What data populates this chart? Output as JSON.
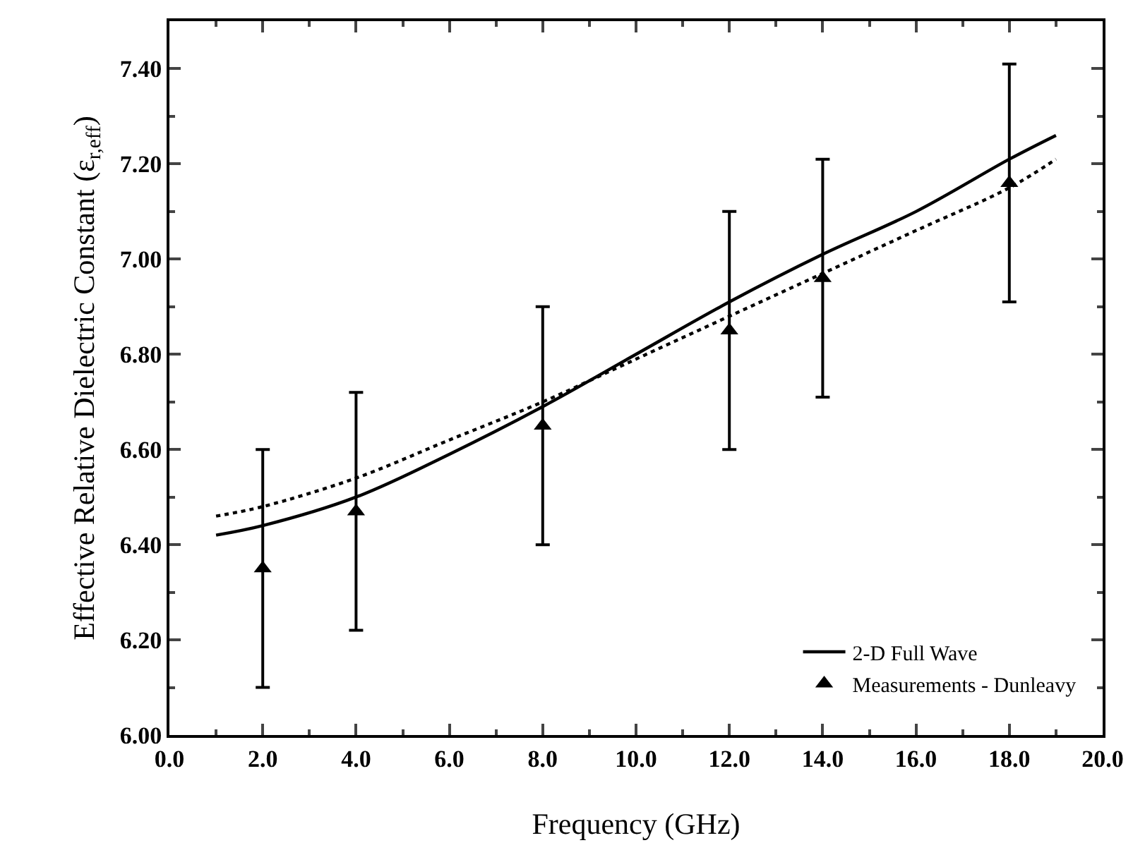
{
  "chart_data": {
    "type": "line",
    "xlabel": "Frequency (GHz)",
    "ylabel": "Effective Relative Dielectric Constant (ε$_{r,eff}$)",
    "xlim": [
      0,
      20
    ],
    "xticks": [
      {
        "value": 0,
        "label": "0.0"
      },
      {
        "value": 2,
        "label": "2.0"
      },
      {
        "value": 4,
        "label": "4.0"
      },
      {
        "value": 6,
        "label": "6.0"
      },
      {
        "value": 8,
        "label": "8.0"
      },
      {
        "value": 10,
        "label": "10.0"
      },
      {
        "value": 12,
        "label": "12.0"
      },
      {
        "value": 14,
        "label": "14.0"
      },
      {
        "value": 16,
        "label": "16.0"
      },
      {
        "value": 18,
        "label": "18.0"
      },
      {
        "value": 20,
        "label": "20.0"
      }
    ],
    "ylim": [
      6.0,
      7.5
    ],
    "yticks": [
      {
        "value": 6.0,
        "label": "6.00"
      },
      {
        "value": 6.2,
        "label": "6.20"
      },
      {
        "value": 6.4,
        "label": "6.40"
      },
      {
        "value": 6.6,
        "label": "6.60"
      },
      {
        "value": 6.8,
        "label": "6.80"
      },
      {
        "value": 7.0,
        "label": "7.00"
      },
      {
        "value": 7.2,
        "label": "7.20"
      },
      {
        "value": 7.4,
        "label": "7.40"
      }
    ],
    "legend": "bottom right",
    "series": [
      {
        "name": "2-D Full Wave",
        "line_style": "solid",
        "color": "#000000",
        "x": [
          1,
          2,
          4,
          6,
          8,
          10,
          12,
          14,
          16,
          18,
          19
        ],
        "values": [
          6.42,
          6.44,
          6.5,
          6.59,
          6.69,
          6.8,
          6.91,
          7.01,
          7.1,
          7.21,
          7.26
        ]
      },
      {
        "line_style": "dotted",
        "color": "#000000",
        "x": [
          1,
          2,
          4,
          6,
          8,
          10,
          12,
          14,
          16,
          18,
          19
        ],
        "values": [
          6.46,
          6.48,
          6.54,
          6.62,
          6.7,
          6.79,
          6.88,
          6.97,
          7.06,
          7.15,
          7.21
        ]
      },
      {
        "name": "Measurements - Dunleavy",
        "type": "scatter",
        "marker": "triangle",
        "color": "#000000",
        "x": [
          2,
          4,
          8,
          12,
          14,
          18
        ],
        "values": [
          6.35,
          6.47,
          6.65,
          6.85,
          6.96,
          7.16
        ],
        "errors": [
          0.25,
          0.25,
          0.25,
          0.25,
          0.25,
          0.25
        ]
      }
    ]
  }
}
